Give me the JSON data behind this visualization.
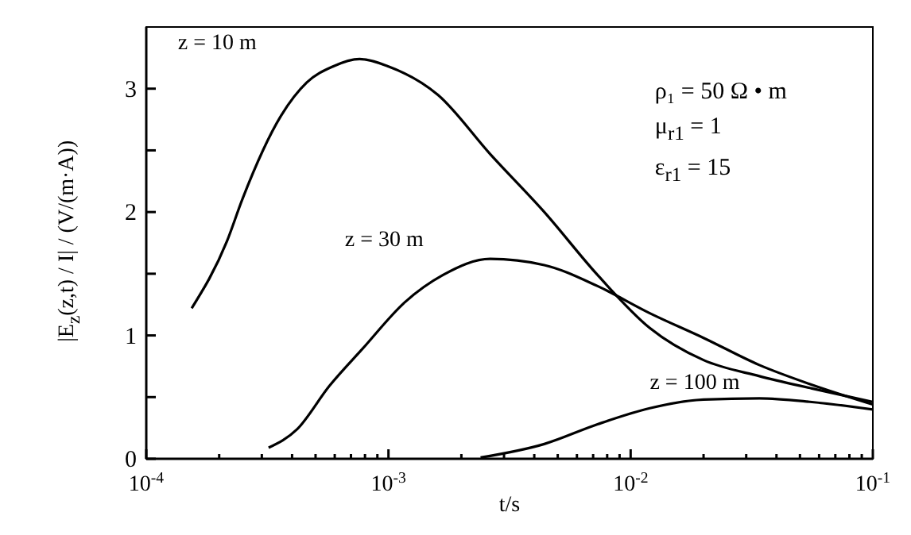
{
  "chart_data": {
    "type": "line",
    "xlabel": "t/s",
    "ylabel": "|E$_{z}$(z,t) / I| / (V/(m·A))",
    "log": "x",
    "xlim": [
      0.0001,
      0.1
    ],
    "xticks": [
      {
        "value": 0.0001,
        "label": "10$^{-4}$"
      },
      {
        "value": 0.0002,
        "label": null
      },
      {
        "value": 0.0003,
        "label": null
      },
      {
        "value": 0.0004,
        "label": null
      },
      {
        "value": 0.0005,
        "label": null
      },
      {
        "value": 0.0006,
        "label": null
      },
      {
        "value": 0.0007,
        "label": null
      },
      {
        "value": 0.0008,
        "label": null
      },
      {
        "value": 0.0009,
        "label": null
      },
      {
        "value": 0.001,
        "label": "10$^{-3}$"
      },
      {
        "value": 0.002,
        "label": null
      },
      {
        "value": 0.003,
        "label": null
      },
      {
        "value": 0.004,
        "label": null
      },
      {
        "value": 0.005,
        "label": null
      },
      {
        "value": 0.006,
        "label": null
      },
      {
        "value": 0.007,
        "label": null
      },
      {
        "value": 0.008,
        "label": null
      },
      {
        "value": 0.009,
        "label": null
      },
      {
        "value": 0.01,
        "label": "10$^{-2}$"
      },
      {
        "value": 0.02,
        "label": null
      },
      {
        "value": 0.03,
        "label": null
      },
      {
        "value": 0.04,
        "label": null
      },
      {
        "value": 0.05,
        "label": null
      },
      {
        "value": 0.06,
        "label": null
      },
      {
        "value": 0.07,
        "label": null
      },
      {
        "value": 0.08,
        "label": null
      },
      {
        "value": 0.09,
        "label": null
      },
      {
        "value": 0.1,
        "label": "10$^{-1}$"
      }
    ],
    "ylim": [
      0,
      3.5
    ],
    "yticks": [
      0,
      {
        "value": 0.5,
        "label": null
      },
      1,
      {
        "value": 1.5,
        "label": null
      },
      2,
      {
        "value": 2.5,
        "label": null
      },
      3
    ],
    "grid": false,
    "legend": false,
    "marker": "none",
    "line_style": "solid",
    "series": [
      {
        "name": "z = 10 m",
        "color": "#000000",
        "x": [
          0.000154,
          0.000215,
          0.00025,
          0.00036,
          0.00046,
          0.00059,
          0.00076,
          0.001,
          0.0016,
          0.00263,
          0.0044,
          0.0073,
          0.012,
          0.02,
          0.034,
          0.056,
          0.1
        ],
        "values": [
          1.22,
          1.76,
          2.11,
          2.78,
          3.05,
          3.18,
          3.24,
          3.18,
          2.95,
          2.47,
          2.0,
          1.49,
          1.06,
          0.8,
          0.67,
          0.57,
          0.46
        ]
      },
      {
        "name": "z = 30 m",
        "color": "#000000",
        "x": [
          0.00032,
          0.00042,
          0.00057,
          0.00078,
          0.00117,
          0.00168,
          0.00263,
          0.0044,
          0.0073,
          0.012,
          0.02,
          0.034,
          0.056,
          0.1
        ],
        "values": [
          0.09,
          0.24,
          0.59,
          0.89,
          1.27,
          1.49,
          1.62,
          1.57,
          1.4,
          1.18,
          0.98,
          0.76,
          0.6,
          0.44
        ]
      },
      {
        "name": "z = 100 m",
        "color": "#000000",
        "x": [
          0.0024,
          0.0044,
          0.0073,
          0.012,
          0.02,
          0.034,
          0.056,
          0.1
        ],
        "values": [
          0.01,
          0.12,
          0.28,
          0.41,
          0.48,
          0.49,
          0.46,
          0.4
        ]
      }
    ],
    "annotations": [
      "ρ₁ = 50 Ω • m",
      "μ$_{r1}$ = 1",
      "ε$_{r1}$ = 15"
    ]
  }
}
